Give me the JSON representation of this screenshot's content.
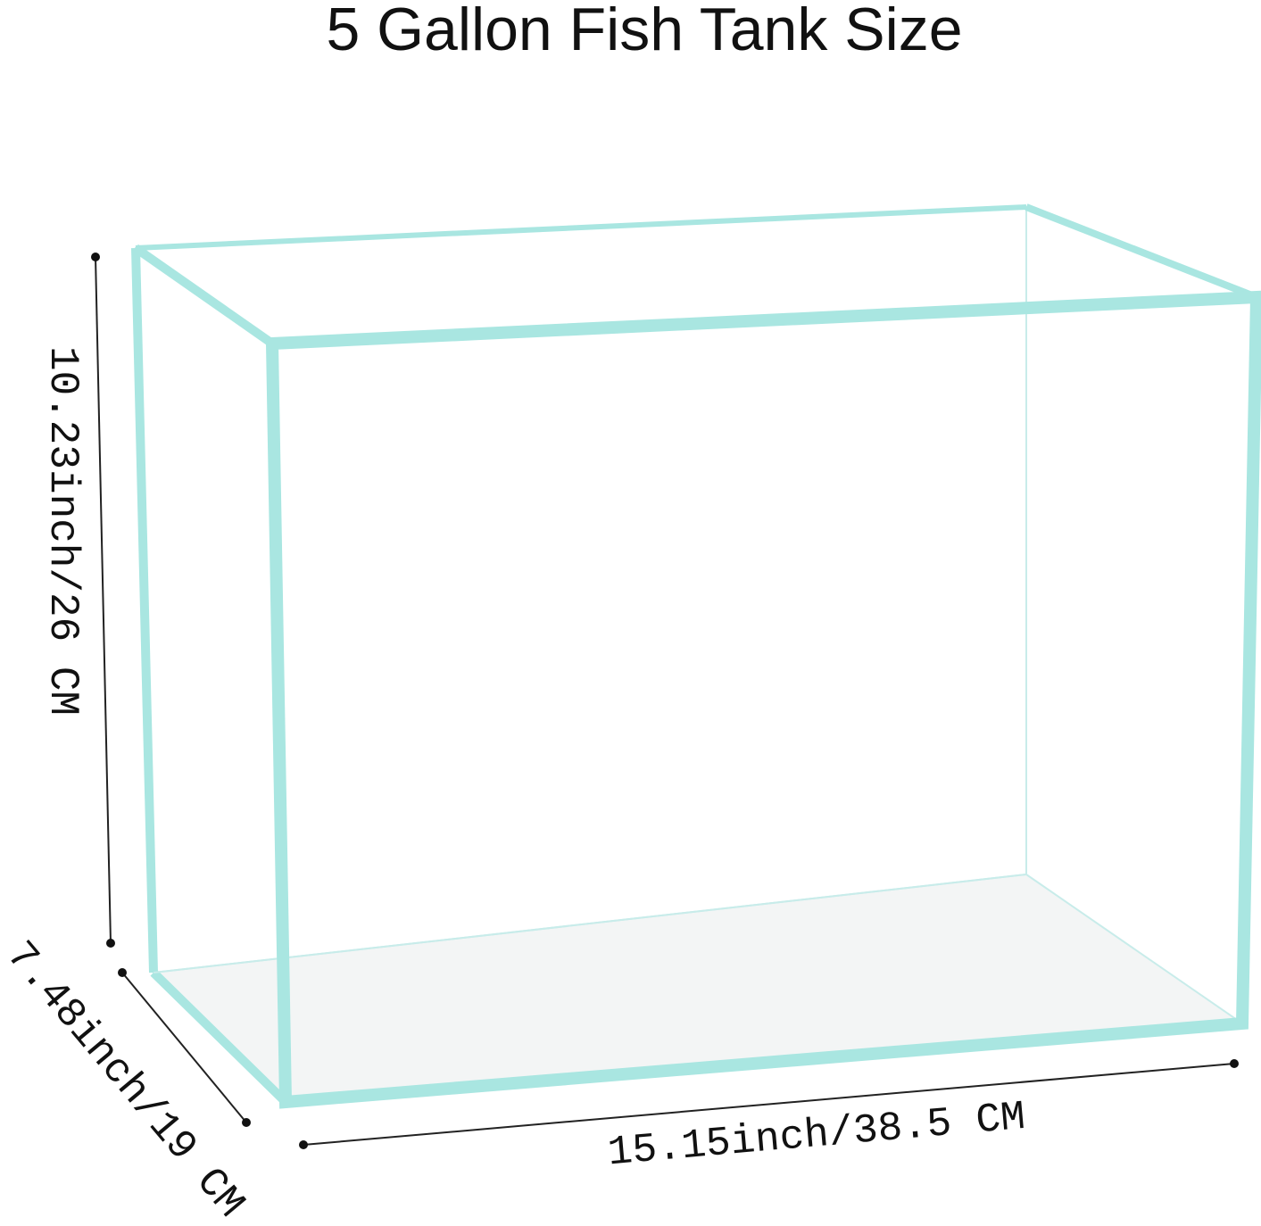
{
  "title": "5 Gallon Fish Tank Size",
  "dimensions": {
    "height": "10.23inch/26 CM",
    "depth": "7.48inch/19 CM",
    "width": "15.15inch/38.5 CM"
  }
}
